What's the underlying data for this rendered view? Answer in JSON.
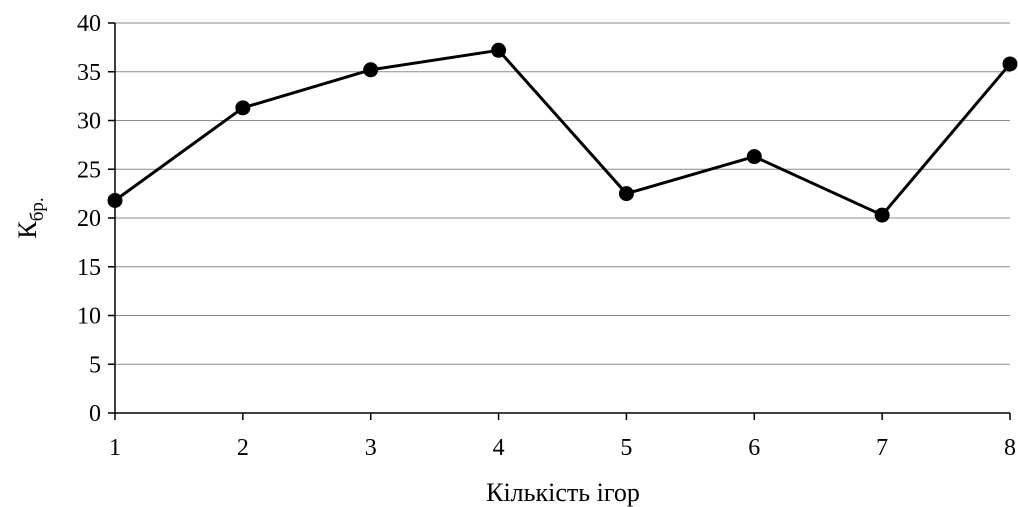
{
  "chart_data": {
    "type": "line",
    "title": "",
    "xlabel": "Кількість ігор",
    "ylabel_main": "К",
    "ylabel_sub": "бр.",
    "x": [
      1,
      2,
      3,
      4,
      5,
      6,
      7,
      8
    ],
    "xlim": [
      1,
      8
    ],
    "ylim": [
      0,
      40
    ],
    "y_ticks": [
      0,
      5,
      10,
      15,
      20,
      25,
      30,
      35,
      40
    ],
    "grid": "horizontal",
    "legend": "none",
    "series": [
      {
        "values": [
          21.8,
          31.3,
          35.2,
          37.2,
          22.5,
          26.3,
          20.3,
          35.8
        ],
        "color": "#000000",
        "marker": "circle"
      }
    ]
  }
}
